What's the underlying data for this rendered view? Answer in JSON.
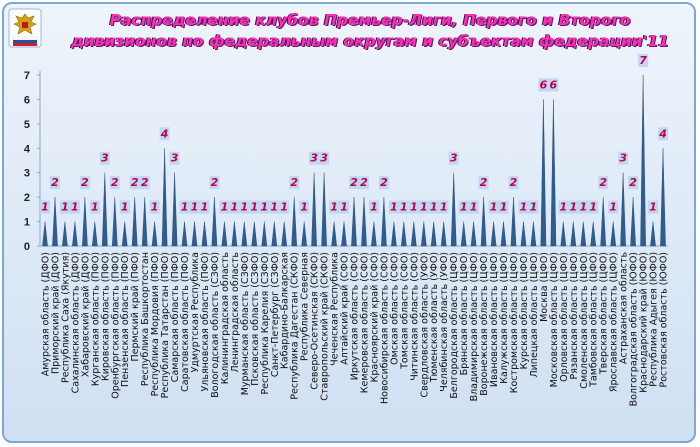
{
  "title": "Распределение клубов Премьер-Лиги, Первого и Второго дивизионов по федеральным округам и субъектам федерации'11",
  "logo_icon": "eagle-emblem-icon",
  "colors": {
    "title": "#ff2fb0",
    "series": "#2f5d8f",
    "data_label": "#c0004a",
    "label_box": "#b9d3f2"
  },
  "chart_data": {
    "type": "area",
    "title": "Распределение клубов Премьер-Лиги, Первого и Второго дивизионов по федеральным округам и субъектам федерации'11",
    "xlabel": "",
    "ylabel": "",
    "ylim": [
      0,
      7
    ],
    "yticks": [
      0,
      1,
      2,
      3,
      4,
      5,
      6,
      7
    ],
    "grid": false,
    "legend": "none",
    "categories": [
      "Амурская область (ДФО)",
      "Приморский край (ДФО)",
      "Республика Саха (Якутия)",
      "Сахалинская область (ДФО)",
      "Хабаровский край (ДФО)",
      "Курганская область (ПФО)",
      "Кировская область (ПФО)",
      "Оренбургская область (ПФО)",
      "Пензенская область (ПФО)",
      "Пермский край (ПФО)",
      "Республика Башкортостан",
      "Республика Мордовия (ПФО)",
      "Республика Татарстан (ПФО)",
      "Самарская область (ПФО)",
      "Саратовская область (ПФО)",
      "Удмуртская Республика",
      "Ульяновская область (ПФО)",
      "Вологодская область (СЗФО)",
      "Калининградская область",
      "Ленинградская область",
      "Мурманская область (СЗФО)",
      "Псковская область (СЗФО)",
      "Республика Карелия (СЗФО)",
      "Санкт-Петербург (СЗФО)",
      "Кабардино-Балкарская",
      "Республика Дагестан (СКФО)",
      "Республика Северная",
      "Северо-Осетинская (СКФО)",
      "Ставропольский край (СКФО)",
      "Чеченская Республика",
      "Алтайский край (СФО)",
      "Иркутская область (СФО)",
      "Кемеровская область (СФО)",
      "Красноярский край (СФО)",
      "Новосибирская область (СФО)",
      "Омская область (СФО)",
      "Томская область (СФО)",
      "Читинская область (СФО)",
      "Свердловская область (УФО)",
      "Тюменская область (УФО)",
      "Челябинская область (УФО)",
      "Белгородская область (ЦФО)",
      "Брянская область (ЦФО)",
      "Владимирская область (ЦФО)",
      "Воронежская область (ЦФО)",
      "Ивановская область (ЦФО)",
      "Калужская область (ЦФО)",
      "Костромская область (ЦФО)",
      "Курская область (ЦФО)",
      "Липецкая область (ЦФО)",
      "Москва (ЦФО)",
      "Московская область (ЦФО)",
      "Орловская область (ЦФО)",
      "Рязанская область (ЦФО)",
      "Смоленская область (ЦФО)",
      "Тамбовская область (ЦФО)",
      "Тверская область (ЦФО)",
      "Ярославская область (ЦФО)",
      "Астраханская область",
      "Волгоградская область (ЮФО)",
      "Краснодарский край (ЮФО)",
      "Республика Адыгея (ЮФО)",
      "Ростовская область (ЮФО)"
    ],
    "series": [
      {
        "values": [
          1,
          2,
          1,
          1,
          2,
          1,
          3,
          2,
          1,
          2,
          2,
          1,
          4,
          3,
          1,
          1,
          1,
          2,
          1,
          1,
          1,
          1,
          1,
          1,
          1,
          2,
          1,
          3,
          3,
          1,
          1,
          2,
          2,
          1,
          2,
          1,
          1,
          1,
          1,
          1,
          1,
          3,
          1,
          1,
          2,
          1,
          1,
          2,
          1,
          1,
          6,
          6,
          1,
          1,
          1,
          1,
          2,
          1,
          3,
          2,
          7,
          1,
          4
        ]
      }
    ]
  }
}
